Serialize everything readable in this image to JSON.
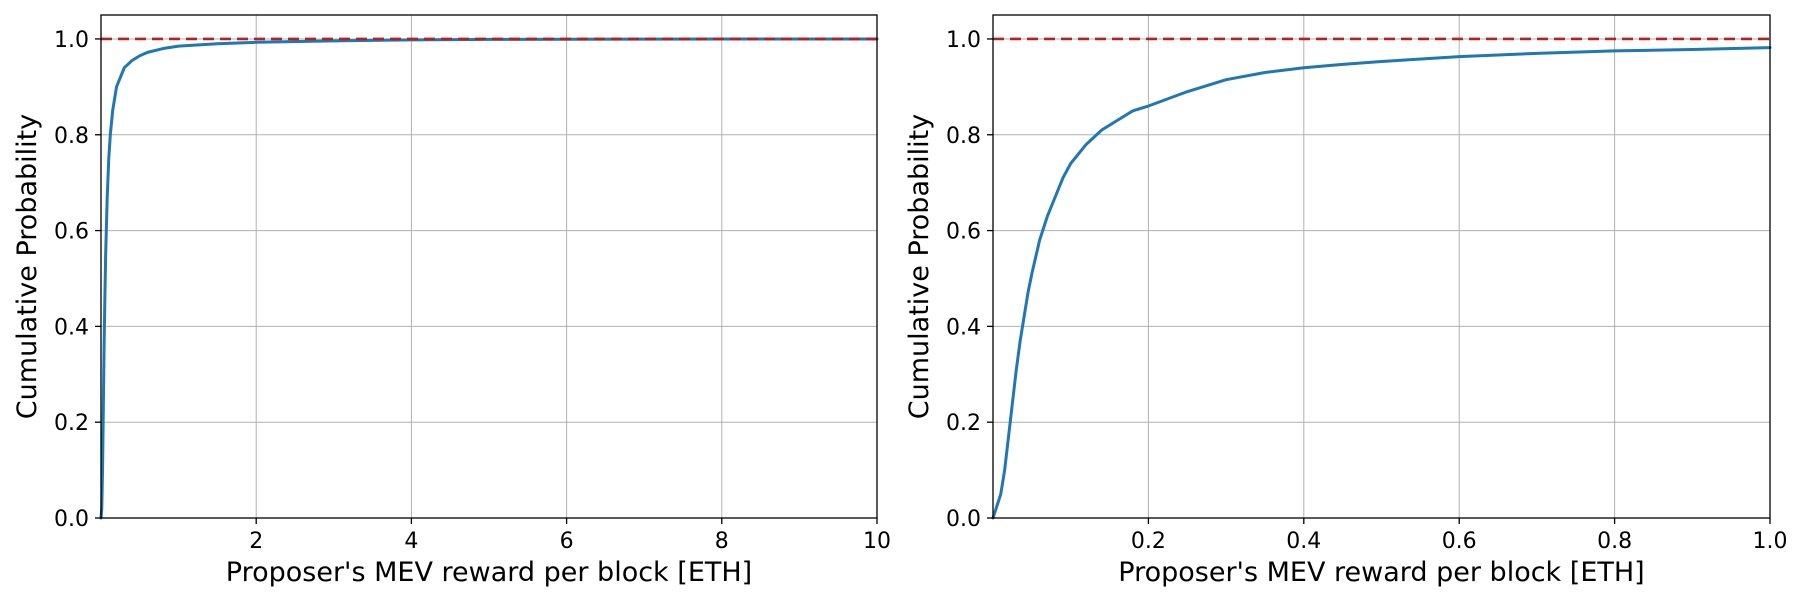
{
  "colors": {
    "series": "#1f77b4",
    "reference": "#b22222",
    "grid": "#b0b0b0"
  },
  "chart_data": [
    {
      "type": "line",
      "xlabel": "Proposer's MEV reward per block [ETH]",
      "ylabel": "Cumulative Probability",
      "xlim": [
        0,
        10
      ],
      "ylim": [
        0,
        1.05
      ],
      "xticks": [
        2,
        4,
        6,
        8,
        10
      ],
      "xtick_labels": [
        "2",
        "4",
        "6",
        "8",
        "10"
      ],
      "yticks": [
        0,
        0.2,
        0.4,
        0.6,
        0.8,
        1.0
      ],
      "ytick_labels": [
        "0.0",
        "0.2",
        "0.4",
        "0.6",
        "0.8",
        "1.0"
      ],
      "grid": true,
      "reference_line": {
        "y": 1.0,
        "style": "dashed"
      },
      "series": [
        {
          "x": [
            0,
            0.01,
            0.02,
            0.03,
            0.04,
            0.05,
            0.06,
            0.08,
            0.1,
            0.12,
            0.15,
            0.2,
            0.25,
            0.3,
            0.4,
            0.5,
            0.6,
            0.8,
            1.0,
            1.5,
            2,
            3,
            4,
            5,
            6,
            7,
            8,
            9,
            10
          ],
          "y": [
            0,
            0.02,
            0.1,
            0.23,
            0.36,
            0.46,
            0.55,
            0.67,
            0.75,
            0.8,
            0.85,
            0.9,
            0.92,
            0.94,
            0.955,
            0.965,
            0.972,
            0.98,
            0.985,
            0.99,
            0.993,
            0.996,
            0.998,
            0.999,
            0.9993,
            0.9996,
            0.9998,
            0.9999,
            1.0
          ]
        }
      ]
    },
    {
      "type": "line",
      "xlabel": "Proposer's MEV reward per block [ETH]",
      "ylabel": "Cumulative Probability",
      "xlim": [
        0,
        1.0
      ],
      "ylim": [
        0,
        1.05
      ],
      "xticks": [
        0.2,
        0.4,
        0.6,
        0.8,
        1.0
      ],
      "xtick_labels": [
        "0.2",
        "0.4",
        "0.6",
        "0.8",
        "1.0"
      ],
      "yticks": [
        0,
        0.2,
        0.4,
        0.6,
        0.8,
        1.0
      ],
      "ytick_labels": [
        "0.0",
        "0.2",
        "0.4",
        "0.6",
        "0.8",
        "1.0"
      ],
      "grid": true,
      "reference_line": {
        "y": 1.0,
        "style": "dashed"
      },
      "series": [
        {
          "x": [
            0,
            0.01,
            0.015,
            0.02,
            0.025,
            0.03,
            0.035,
            0.04,
            0.045,
            0.05,
            0.06,
            0.07,
            0.08,
            0.09,
            0.1,
            0.12,
            0.14,
            0.16,
            0.18,
            0.2,
            0.25,
            0.3,
            0.35,
            0.4,
            0.45,
            0.5,
            0.6,
            0.7,
            0.8,
            0.9,
            1.0
          ],
          "y": [
            0,
            0.05,
            0.1,
            0.17,
            0.24,
            0.31,
            0.37,
            0.42,
            0.47,
            0.51,
            0.58,
            0.63,
            0.67,
            0.71,
            0.74,
            0.78,
            0.81,
            0.83,
            0.85,
            0.86,
            0.89,
            0.915,
            0.93,
            0.94,
            0.947,
            0.953,
            0.963,
            0.97,
            0.975,
            0.978,
            0.982
          ]
        }
      ]
    }
  ]
}
